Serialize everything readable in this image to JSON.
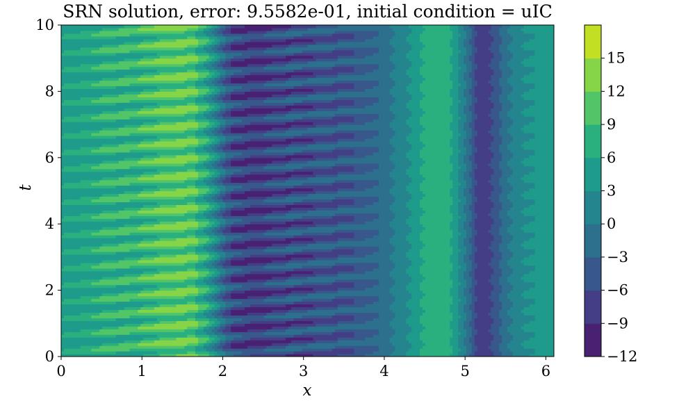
{
  "chart_data": {
    "type": "heatmap",
    "subtype": "filled-contour",
    "title": "SRN solution, error: 9.5582e-01, initial condition = uIC",
    "xlabel": "x",
    "ylabel": "t",
    "xlim": [
      0,
      6.1
    ],
    "ylim": [
      0,
      10
    ],
    "x_ticks": [
      "0",
      "1",
      "2",
      "3",
      "4",
      "5",
      "6"
    ],
    "y_ticks": [
      "0",
      "2",
      "4",
      "6",
      "8",
      "10"
    ],
    "colormap": "viridis",
    "colorbar": {
      "levels": [
        -12,
        -9,
        -6,
        -3,
        0,
        3,
        6,
        9,
        12,
        15
      ],
      "tick_labels": [
        "−12",
        "−9",
        "−6",
        "−3",
        "0",
        "3",
        "6",
        "9",
        "12",
        "15"
      ],
      "colors": [
        "#482173",
        "#433e85",
        "#38588c",
        "#2d708e",
        "#25858e",
        "#1e9b8a",
        "#2ab07f",
        "#52c569",
        "#86d549",
        "#c2df23"
      ]
    },
    "x_profile": {
      "x": [
        0,
        0.3,
        0.6,
        0.9,
        1.1,
        1.3,
        1.5,
        1.65,
        1.8,
        1.95,
        2.1,
        2.3,
        2.6,
        2.9,
        3.2,
        3.5,
        3.8,
        4.0,
        4.2,
        4.35,
        4.45,
        4.6,
        4.75,
        4.85,
        4.95,
        5.05,
        5.15,
        5.25,
        5.4,
        5.55,
        5.7,
        5.85,
        6.1
      ],
      "u": [
        5,
        6,
        7,
        8,
        9.5,
        10.5,
        11,
        10,
        6,
        0,
        -6,
        -7.5,
        -6.5,
        -5.5,
        -5,
        -4.5,
        -3.5,
        -1.5,
        1.5,
        3.5,
        6,
        7.5,
        7.5,
        5.5,
        2,
        -2,
        -7,
        -8,
        -4,
        0,
        2.5,
        3.5,
        4.5
      ]
    },
    "oscillation": {
      "period_t": 0.5,
      "amplitude": 4
    }
  }
}
